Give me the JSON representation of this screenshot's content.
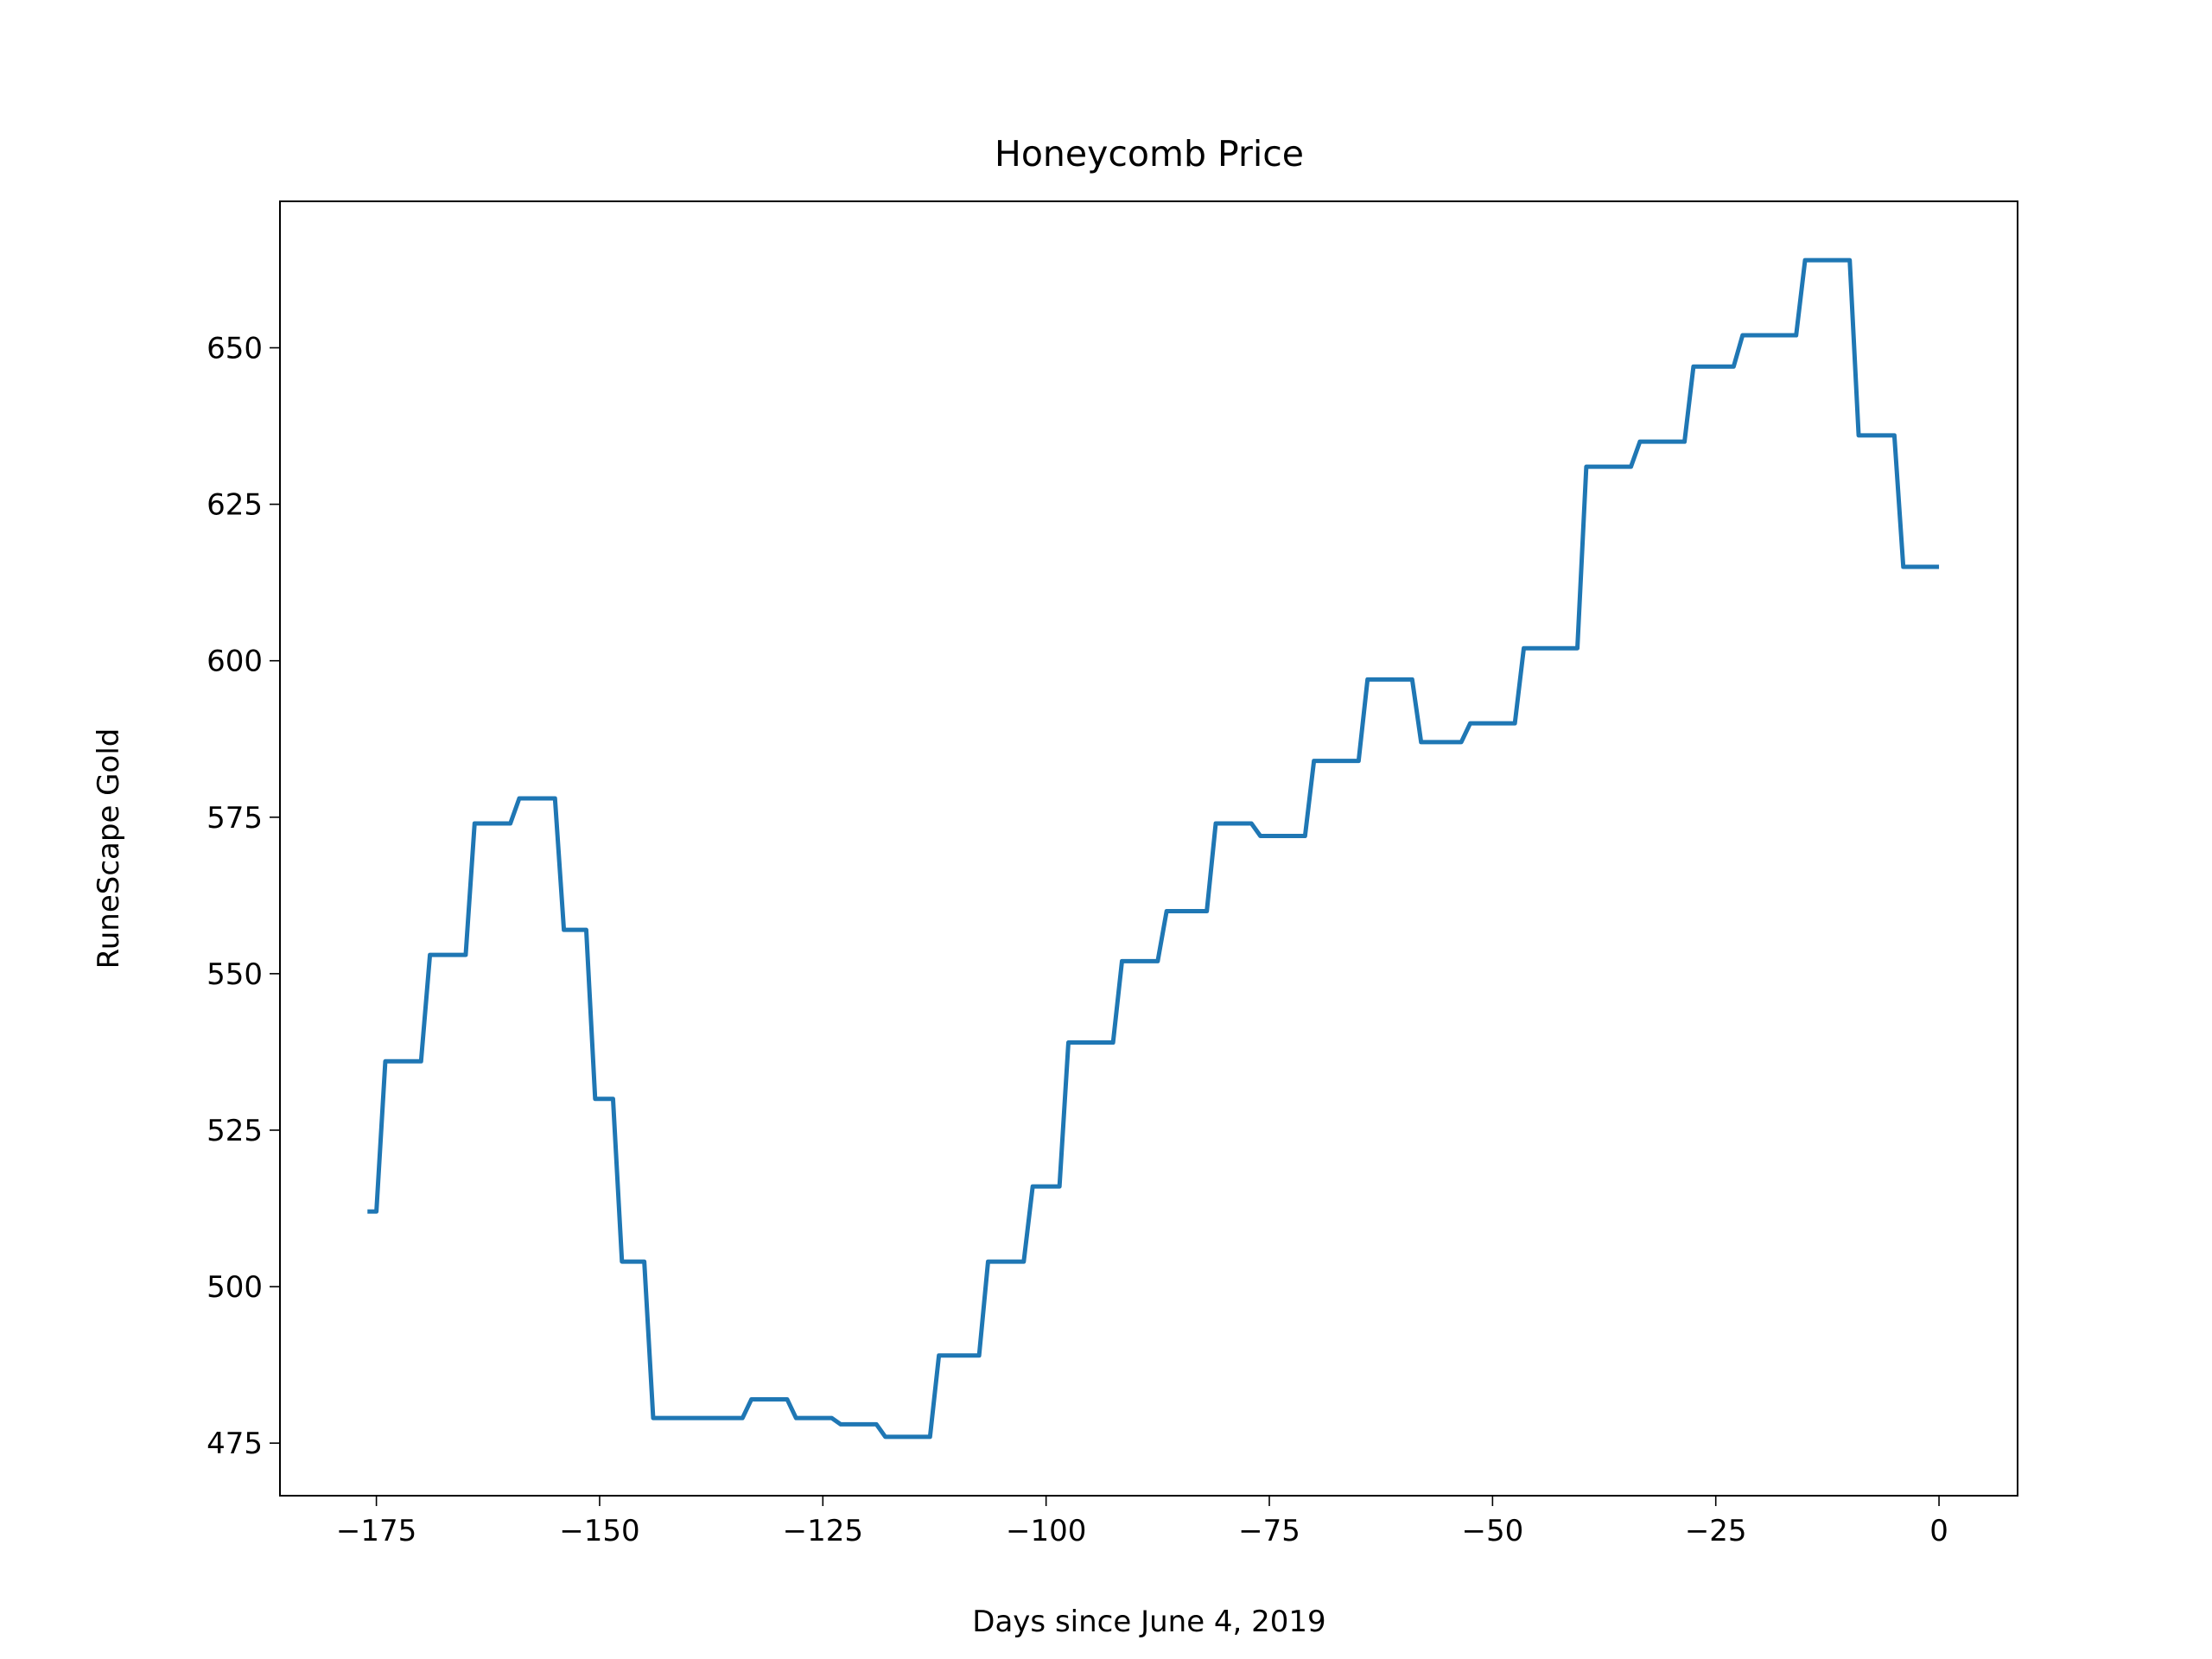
{
  "chart_data": {
    "type": "line",
    "title": "Honeycomb Price",
    "xlabel": "Days since June 4, 2019",
    "ylabel": "RuneScape Gold",
    "color": "#1f77b4",
    "x": [
      -176,
      -175,
      -174,
      -170,
      -169,
      -165,
      -164,
      -160,
      -159,
      -155,
      -154,
      -151.5,
      -150.5,
      -148.5,
      -147.5,
      -145,
      -144,
      -134,
      -133,
      -129,
      -128,
      -124,
      -123,
      -119,
      -118,
      -113,
      -112,
      -107.5,
      -106.5,
      -102.5,
      -101.5,
      -98.5,
      -97.5,
      -92.5,
      -91.5,
      -87.5,
      -86.5,
      -82,
      -81,
      -77,
      -76,
      -71,
      -70,
      -65,
      -64,
      -59,
      -58,
      -53.5,
      -52.5,
      -47.5,
      -46.5,
      -40.5,
      -39.5,
      -34.5,
      -33.5,
      -28.5,
      -27.5,
      -23,
      -22,
      -16,
      -15,
      -10,
      -9,
      -5,
      -4,
      0
    ],
    "values": [
      512,
      512,
      536,
      536,
      553,
      553,
      574,
      574,
      578,
      578,
      557,
      557,
      530,
      530,
      504,
      504,
      479,
      479,
      482,
      482,
      479,
      479,
      478,
      478,
      476,
      476,
      489,
      489,
      504,
      504,
      516,
      516,
      539,
      539,
      552,
      552,
      560,
      560,
      574,
      574,
      572,
      572,
      584,
      584,
      597,
      597,
      587,
      587,
      590,
      590,
      602,
      602,
      631,
      631,
      635,
      635,
      647,
      647,
      652,
      652,
      664,
      664,
      636,
      636,
      615,
      615
    ],
    "xlim": [
      -185.8,
      8.8
    ],
    "ylim": [
      466.6,
      673.4
    ],
    "xticks": [
      {
        "value": -175,
        "label": "−175"
      },
      {
        "value": -150,
        "label": "−150"
      },
      {
        "value": -125,
        "label": "−125"
      },
      {
        "value": -100,
        "label": "−100"
      },
      {
        "value": -75,
        "label": "−75"
      },
      {
        "value": -50,
        "label": "−50"
      },
      {
        "value": -25,
        "label": "−25"
      },
      0
    ],
    "yticks": [
      475,
      500,
      525,
      550,
      575,
      600,
      625,
      650
    ],
    "grid": false
  }
}
